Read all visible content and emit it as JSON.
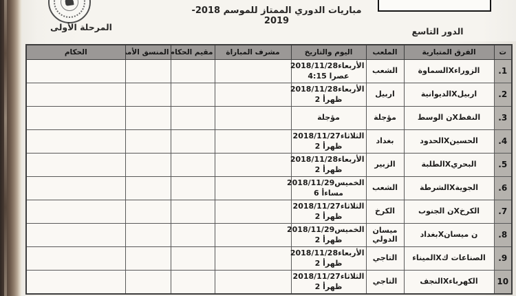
{
  "page": {
    "title": "مباريات الدوري الممتاز للموسم 2018-2019",
    "round_label": "الدور التاسع",
    "stage_label": "المرحلة الأولى"
  },
  "colors": {
    "header_band": "#9b9896",
    "num_column": "#b5b2ad",
    "paper": "#f6f4ef",
    "binding_edge": "#4a3c33"
  },
  "table": {
    "headers": [
      "ت",
      "الفرق المتبارية",
      "الملعب",
      "اليوم والتاريخ",
      "مشرف المباراة",
      "مقيم الحكام",
      "المنسق الأمني",
      "الحكام"
    ],
    "rows": [
      {
        "num": ".1",
        "teams": "الزوراءXالسماوة",
        "stadium": "الشعب",
        "date_line1": "الأربعاء2018/11/28",
        "date_line2": "4:15 عصرا",
        "supervisor": "",
        "evaluator": "",
        "coordinator": "",
        "referees": ""
      },
      {
        "num": ".2",
        "teams": "اربيلXالديوانية",
        "stadium": "اربيل",
        "date_line1": "الأربعاء2018/11/28",
        "date_line2": "2 ظهرأ",
        "supervisor": "",
        "evaluator": "",
        "coordinator": "",
        "referees": ""
      },
      {
        "num": ".3",
        "teams": "النفطXن الوسط",
        "stadium": "مؤجلة",
        "date_line1": "مؤجلة",
        "date_line2": "",
        "supervisor": "",
        "evaluator": "",
        "coordinator": "",
        "referees": ""
      },
      {
        "num": ".4",
        "teams": "الحسينXالحدود",
        "stadium": "بغداد",
        "date_line1": "الثلاثاء2018/11/27",
        "date_line2": "2 ظهرأ",
        "supervisor": "",
        "evaluator": "",
        "coordinator": "",
        "referees": ""
      },
      {
        "num": ".5",
        "teams": "البحريXالطلبة",
        "stadium": "الزبير",
        "date_line1": "الأربعاء2018/11/28",
        "date_line2": "2 ظهرأ",
        "supervisor": "",
        "evaluator": "",
        "coordinator": "",
        "referees": ""
      },
      {
        "num": ".6",
        "teams": "الجويةXالشرطة",
        "stadium": "الشعب",
        "date_line1": "الخميس2018/11/29",
        "date_line2": "6 مساءأ",
        "supervisor": "",
        "evaluator": "",
        "coordinator": "",
        "referees": ""
      },
      {
        "num": ".7",
        "teams": "الكرخXن الجنوب",
        "stadium": "الكرخ",
        "date_line1": "الثلاثاء2018/11/27",
        "date_line2": "2 ظهرأ",
        "supervisor": "",
        "evaluator": "",
        "coordinator": "",
        "referees": ""
      },
      {
        "num": ".8",
        "teams": "ن ميسانXبغداد",
        "stadium": "ميسان الدولي",
        "date_line1": "الخميس2018/11/29",
        "date_line2": "2 ظهرأ",
        "supervisor": "",
        "evaluator": "",
        "coordinator": "",
        "referees": ""
      },
      {
        "num": ".9",
        "teams": "الصناعات كXالميناء",
        "stadium": "التاجي",
        "date_line1": "الأربعاء2018/11/28",
        "date_line2": "2 ظهرأ",
        "supervisor": "",
        "evaluator": "",
        "coordinator": "",
        "referees": ""
      },
      {
        "num": "10",
        "teams": "الكهرباءXالنجف",
        "stadium": "التاجي",
        "date_line1": "الثلاثاء2018/11/27",
        "date_line2": "2 ظهرأ",
        "supervisor": "",
        "evaluator": "",
        "coordinator": "",
        "referees": ""
      }
    ]
  }
}
